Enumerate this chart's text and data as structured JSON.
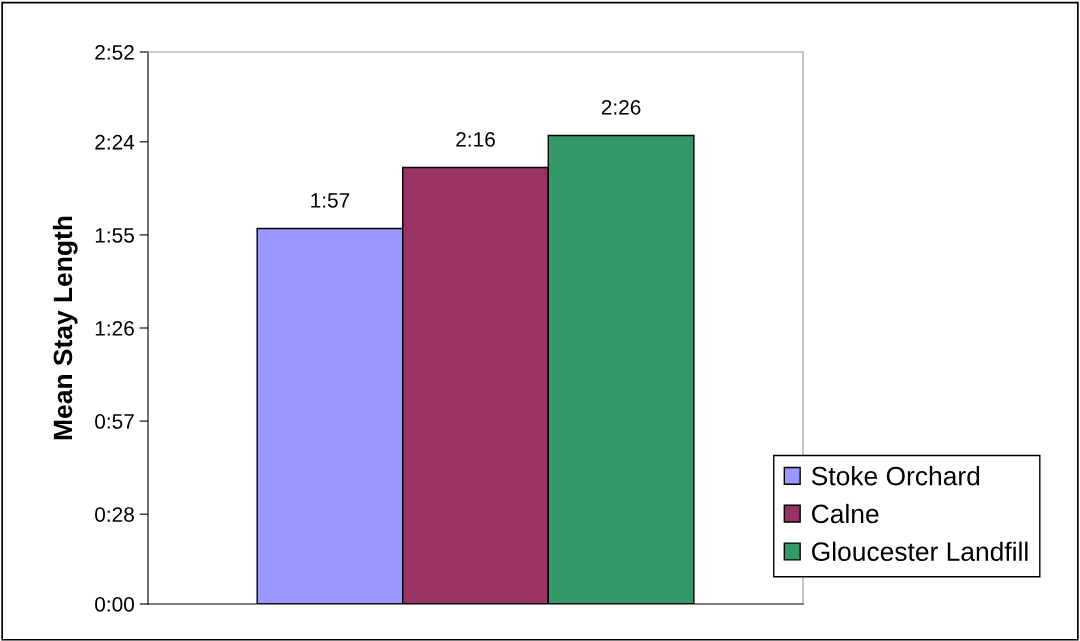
{
  "chart_data": {
    "type": "bar",
    "ylabel": "Mean Stay Length",
    "categories": [
      null
    ],
    "series": [
      {
        "name": "Stoke Orchard",
        "color": "#9999ff",
        "values": [
          117
        ],
        "value_labels": [
          "1:57"
        ]
      },
      {
        "name": "Calne",
        "color": "#993366",
        "values": [
          136
        ],
        "value_labels": [
          "2:16"
        ]
      },
      {
        "name": "Gloucester Landfill",
        "color": "#339966",
        "values": [
          146
        ],
        "value_labels": [
          "2:26"
        ]
      }
    ],
    "ylim": [
      0,
      172
    ],
    "yticks": [
      {
        "value": 0,
        "label": "0:00"
      },
      {
        "value": 28,
        "label": "0:28"
      },
      {
        "value": 57,
        "label": "0:57"
      },
      {
        "value": 86,
        "label": "1:26"
      },
      {
        "value": 115,
        "label": "1:55"
      },
      {
        "value": 144,
        "label": "2:24"
      },
      {
        "value": 172,
        "label": "2:52"
      }
    ],
    "grid": false,
    "legend": "right"
  }
}
